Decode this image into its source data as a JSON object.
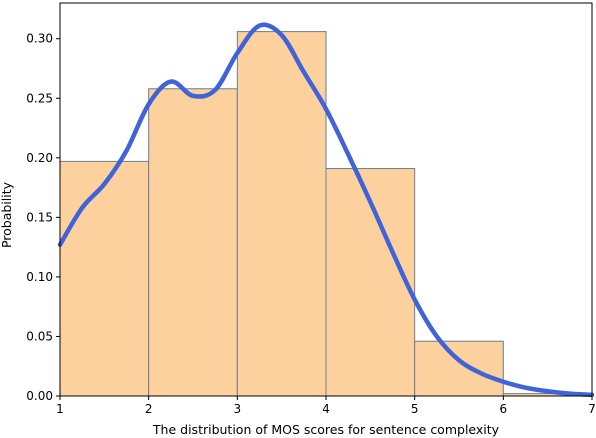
{
  "chart_data": {
    "type": "bar",
    "title": "",
    "xlabel": "The distribution of MOS scores for sentence complexity",
    "ylabel": "Probability",
    "xlim": [
      1,
      7
    ],
    "ylim": [
      0,
      0.33
    ],
    "grid": false,
    "legend": "none",
    "bins": [
      {
        "x0": 1,
        "x1": 2,
        "value": 0.197
      },
      {
        "x0": 2,
        "x1": 3,
        "value": 0.258
      },
      {
        "x0": 3,
        "x1": 4,
        "value": 0.306
      },
      {
        "x0": 4,
        "x1": 5,
        "value": 0.191
      },
      {
        "x0": 5,
        "x1": 6,
        "value": 0.046
      },
      {
        "x0": 6,
        "x1": 7,
        "value": 0.002
      }
    ],
    "kde": {
      "x": [
        1.0,
        1.25,
        1.5,
        1.75,
        2.0,
        2.25,
        2.5,
        2.75,
        3.0,
        3.25,
        3.5,
        3.75,
        4.0,
        4.25,
        4.5,
        4.75,
        5.0,
        5.25,
        5.5,
        5.75,
        6.0,
        6.25,
        6.5,
        6.75,
        7.0
      ],
      "y": [
        0.127,
        0.158,
        0.178,
        0.206,
        0.245,
        0.264,
        0.252,
        0.257,
        0.288,
        0.311,
        0.303,
        0.272,
        0.241,
        0.203,
        0.163,
        0.121,
        0.081,
        0.05,
        0.03,
        0.019,
        0.012,
        0.007,
        0.004,
        0.002,
        0.001
      ]
    },
    "xticks": [
      "1",
      "2",
      "3",
      "4",
      "5",
      "6",
      "7"
    ],
    "yticks": [
      "0.00",
      "0.05",
      "0.10",
      "0.15",
      "0.20",
      "0.25",
      "0.30"
    ],
    "colors": {
      "bar_fill": "#fdd19d",
      "bar_edge": "#6a7f95",
      "kde_line": "#3f63d9"
    }
  }
}
